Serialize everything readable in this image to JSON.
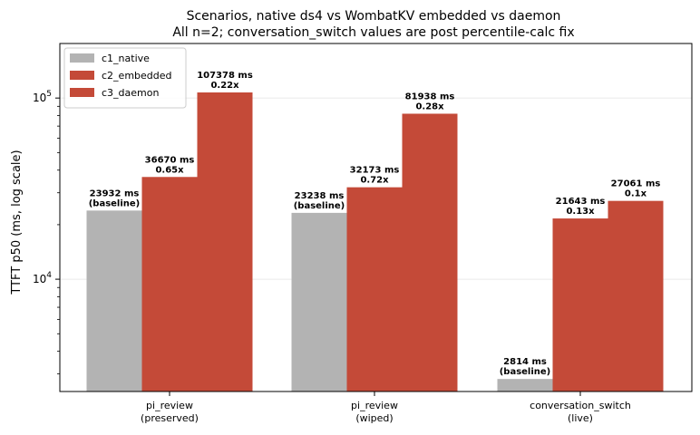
{
  "chart_data": {
    "type": "bar",
    "title": "Scenarios, native ds4 vs WombatKV embedded vs daemon",
    "subtitle": "All n=2; conversation_switch values are post percentile-calc fix",
    "ylabel": "TTFT p50 (ms, log scale)",
    "xlabel": "",
    "yscale": "log",
    "ylim": [
      2400,
      200000
    ],
    "yticks": [
      {
        "value": 10000,
        "base": "10",
        "exp": "4"
      },
      {
        "value": 100000,
        "base": "10",
        "exp": "5"
      }
    ],
    "grid": "horizontal",
    "legend_position": "top-left",
    "categories": [
      {
        "line1": "pi_review",
        "line2": "(preserved)"
      },
      {
        "line1": "pi_review",
        "line2": "(wiped)"
      },
      {
        "line1": "conversation_switch",
        "line2": "(live)"
      }
    ],
    "series": [
      {
        "name": "c1_native",
        "color": "#b3b3b3",
        "values": [
          23932,
          23238,
          2814
        ],
        "labels": [
          {
            "line1": "23932 ms",
            "line2": "(baseline)"
          },
          {
            "line1": "23238 ms",
            "line2": "(baseline)"
          },
          {
            "line1": "2814 ms",
            "line2": "(baseline)"
          }
        ]
      },
      {
        "name": "c2_embedded",
        "color": "#c44a38",
        "values": [
          36670,
          32173,
          21643
        ],
        "labels": [
          {
            "line1": "36670 ms",
            "line2": "0.65x"
          },
          {
            "line1": "32173 ms",
            "line2": "0.72x"
          },
          {
            "line1": "21643 ms",
            "line2": "0.13x"
          }
        ]
      },
      {
        "name": "c3_daemon",
        "color": "#c44a38",
        "values": [
          107378,
          81938,
          27061
        ],
        "labels": [
          {
            "line1": "107378 ms",
            "line2": "0.22x"
          },
          {
            "line1": "81938 ms",
            "line2": "0.28x"
          },
          {
            "line1": "27061 ms",
            "line2": "0.1x"
          }
        ]
      }
    ]
  }
}
